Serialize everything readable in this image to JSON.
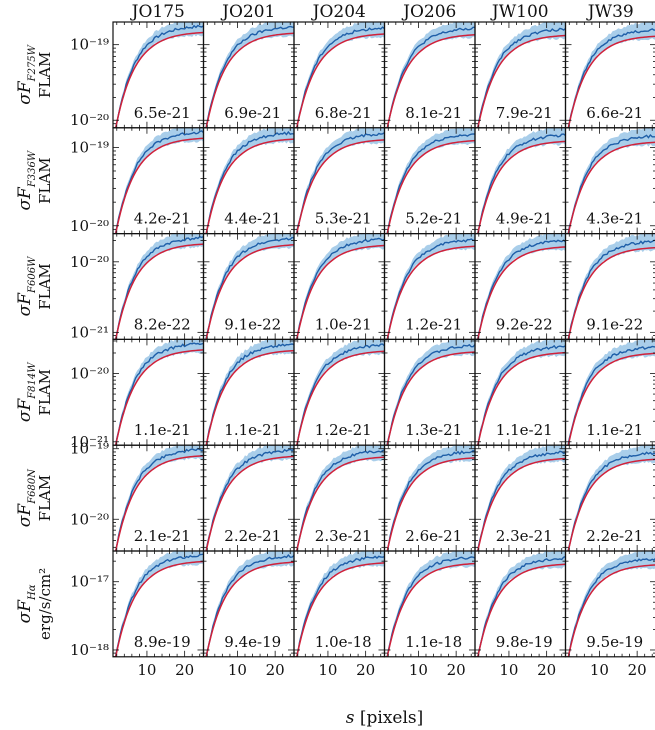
{
  "chart_data": {
    "type": "line",
    "xlabel": "s [pixels]",
    "x_ticks": [
      10,
      20
    ],
    "xlim": [
      1,
      25
    ],
    "columns": [
      "JO175",
      "JO201",
      "JO204",
      "JO206",
      "JW100",
      "JW39"
    ],
    "rows": [
      {
        "ylabel_main": "σF",
        "ylabel_sub": "F275W",
        "ylabel_unit": "FLAM",
        "log_ylim": [
          -20.1,
          -18.7
        ],
        "yticks": [
          {
            "log": -19,
            "label": "10⁻¹⁹"
          },
          {
            "log": -20,
            "label": "10⁻²⁰"
          }
        ],
        "values": [
          "6.5e-21",
          "6.9e-21",
          "6.8e-21",
          "8.1e-21",
          "7.9e-21",
          "6.6e-21"
        ]
      },
      {
        "ylabel_main": "σF",
        "ylabel_sub": "F336W",
        "ylabel_unit": "FLAM",
        "log_ylim": [
          -20.1,
          -18.75
        ],
        "yticks": [
          {
            "log": -19,
            "label": "10⁻¹⁹"
          },
          {
            "log": -20,
            "label": "10⁻²⁰"
          }
        ],
        "values": [
          "4.2e-21",
          "4.4e-21",
          "5.3e-21",
          "5.2e-21",
          "4.9e-21",
          "4.3e-21"
        ]
      },
      {
        "ylabel_main": "σF",
        "ylabel_sub": "F606W",
        "ylabel_unit": "FLAM",
        "log_ylim": [
          -21.1,
          -19.6
        ],
        "yticks": [
          {
            "log": -20,
            "label": "10⁻²⁰"
          },
          {
            "log": -21,
            "label": "10⁻²¹"
          }
        ],
        "values": [
          "8.2e-22",
          "9.1e-22",
          "1.0e-21",
          "1.2e-21",
          "9.2e-22",
          "9.1e-22"
        ]
      },
      {
        "ylabel_main": "σF",
        "ylabel_sub": "F814W",
        "ylabel_unit": "FLAM",
        "log_ylim": [
          -21.05,
          -19.5
        ],
        "yticks": [
          {
            "log": -20,
            "label": "10⁻²⁰"
          },
          {
            "log": -21,
            "label": "10⁻²¹"
          }
        ],
        "values": [
          "1.1e-21",
          "1.1e-21",
          "1.2e-21",
          "1.3e-21",
          "1.1e-21",
          "1.1e-21"
        ]
      },
      {
        "ylabel_main": "σF",
        "ylabel_sub": "F680N",
        "ylabel_unit": "FLAM",
        "log_ylim": [
          -20.45,
          -18.95
        ],
        "yticks": [
          {
            "log": -19,
            "label": "10⁻¹⁹"
          },
          {
            "log": -20,
            "label": "10⁻²⁰"
          }
        ],
        "values": [
          "2.1e-21",
          "2.2e-21",
          "2.3e-21",
          "2.6e-21",
          "2.3e-21",
          "2.2e-21"
        ]
      },
      {
        "ylabel_main": "σF",
        "ylabel_sub": "Hα",
        "ylabel_unit": "erg/s/cm²",
        "log_ylim": [
          -18.1,
          -16.55
        ],
        "yticks": [
          {
            "log": -17,
            "label": "10⁻¹⁷"
          },
          {
            "log": -18,
            "label": "10⁻¹⁸"
          }
        ],
        "values": [
          "8.9e-19",
          "9.4e-19",
          "1.0e-18",
          "1.1e-18",
          "9.8e-19",
          "9.5e-19"
        ]
      }
    ],
    "curves": {
      "description_model": "red model curve",
      "description_obs": "blue measured curve with shaded band"
    },
    "colors": {
      "observed": "#1f5fa8",
      "band": "#9ac6e6",
      "model": "#d0213a"
    }
  }
}
